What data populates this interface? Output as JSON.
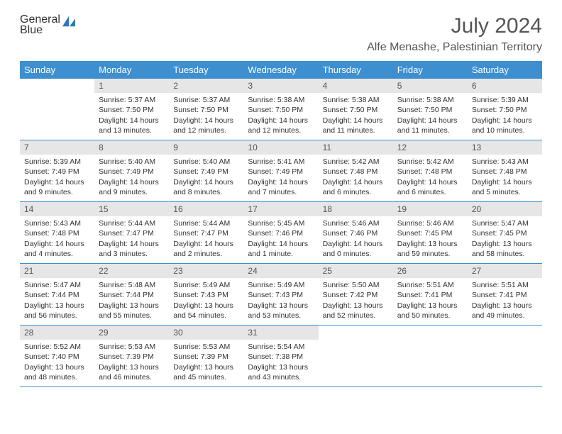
{
  "logo": {
    "line1": "General",
    "line2": "Blue"
  },
  "header": {
    "monthTitle": "July 2024",
    "location": "Alfe Menashe, Palestinian Territory"
  },
  "colors": {
    "headerBar": "#3d8fcf",
    "dayNumBg": "#e6e6e6",
    "weekBorder": "#3d8fcf",
    "logoGray": "#6a6a6a",
    "logoBlue": "#2f78b7",
    "textDark": "#333333",
    "background": "#ffffff"
  },
  "dayNames": [
    "Sunday",
    "Monday",
    "Tuesday",
    "Wednesday",
    "Thursday",
    "Friday",
    "Saturday"
  ],
  "weeks": [
    [
      {
        "day": "",
        "sunrise": "",
        "sunset": "",
        "daylight": ""
      },
      {
        "day": "1",
        "sunrise": "Sunrise: 5:37 AM",
        "sunset": "Sunset: 7:50 PM",
        "daylight": "Daylight: 14 hours and 13 minutes."
      },
      {
        "day": "2",
        "sunrise": "Sunrise: 5:37 AM",
        "sunset": "Sunset: 7:50 PM",
        "daylight": "Daylight: 14 hours and 12 minutes."
      },
      {
        "day": "3",
        "sunrise": "Sunrise: 5:38 AM",
        "sunset": "Sunset: 7:50 PM",
        "daylight": "Daylight: 14 hours and 12 minutes."
      },
      {
        "day": "4",
        "sunrise": "Sunrise: 5:38 AM",
        "sunset": "Sunset: 7:50 PM",
        "daylight": "Daylight: 14 hours and 11 minutes."
      },
      {
        "day": "5",
        "sunrise": "Sunrise: 5:38 AM",
        "sunset": "Sunset: 7:50 PM",
        "daylight": "Daylight: 14 hours and 11 minutes."
      },
      {
        "day": "6",
        "sunrise": "Sunrise: 5:39 AM",
        "sunset": "Sunset: 7:50 PM",
        "daylight": "Daylight: 14 hours and 10 minutes."
      }
    ],
    [
      {
        "day": "7",
        "sunrise": "Sunrise: 5:39 AM",
        "sunset": "Sunset: 7:49 PM",
        "daylight": "Daylight: 14 hours and 9 minutes."
      },
      {
        "day": "8",
        "sunrise": "Sunrise: 5:40 AM",
        "sunset": "Sunset: 7:49 PM",
        "daylight": "Daylight: 14 hours and 9 minutes."
      },
      {
        "day": "9",
        "sunrise": "Sunrise: 5:40 AM",
        "sunset": "Sunset: 7:49 PM",
        "daylight": "Daylight: 14 hours and 8 minutes."
      },
      {
        "day": "10",
        "sunrise": "Sunrise: 5:41 AM",
        "sunset": "Sunset: 7:49 PM",
        "daylight": "Daylight: 14 hours and 7 minutes."
      },
      {
        "day": "11",
        "sunrise": "Sunrise: 5:42 AM",
        "sunset": "Sunset: 7:48 PM",
        "daylight": "Daylight: 14 hours and 6 minutes."
      },
      {
        "day": "12",
        "sunrise": "Sunrise: 5:42 AM",
        "sunset": "Sunset: 7:48 PM",
        "daylight": "Daylight: 14 hours and 6 minutes."
      },
      {
        "day": "13",
        "sunrise": "Sunrise: 5:43 AM",
        "sunset": "Sunset: 7:48 PM",
        "daylight": "Daylight: 14 hours and 5 minutes."
      }
    ],
    [
      {
        "day": "14",
        "sunrise": "Sunrise: 5:43 AM",
        "sunset": "Sunset: 7:48 PM",
        "daylight": "Daylight: 14 hours and 4 minutes."
      },
      {
        "day": "15",
        "sunrise": "Sunrise: 5:44 AM",
        "sunset": "Sunset: 7:47 PM",
        "daylight": "Daylight: 14 hours and 3 minutes."
      },
      {
        "day": "16",
        "sunrise": "Sunrise: 5:44 AM",
        "sunset": "Sunset: 7:47 PM",
        "daylight": "Daylight: 14 hours and 2 minutes."
      },
      {
        "day": "17",
        "sunrise": "Sunrise: 5:45 AM",
        "sunset": "Sunset: 7:46 PM",
        "daylight": "Daylight: 14 hours and 1 minute."
      },
      {
        "day": "18",
        "sunrise": "Sunrise: 5:46 AM",
        "sunset": "Sunset: 7:46 PM",
        "daylight": "Daylight: 14 hours and 0 minutes."
      },
      {
        "day": "19",
        "sunrise": "Sunrise: 5:46 AM",
        "sunset": "Sunset: 7:45 PM",
        "daylight": "Daylight: 13 hours and 59 minutes."
      },
      {
        "day": "20",
        "sunrise": "Sunrise: 5:47 AM",
        "sunset": "Sunset: 7:45 PM",
        "daylight": "Daylight: 13 hours and 58 minutes."
      }
    ],
    [
      {
        "day": "21",
        "sunrise": "Sunrise: 5:47 AM",
        "sunset": "Sunset: 7:44 PM",
        "daylight": "Daylight: 13 hours and 56 minutes."
      },
      {
        "day": "22",
        "sunrise": "Sunrise: 5:48 AM",
        "sunset": "Sunset: 7:44 PM",
        "daylight": "Daylight: 13 hours and 55 minutes."
      },
      {
        "day": "23",
        "sunrise": "Sunrise: 5:49 AM",
        "sunset": "Sunset: 7:43 PM",
        "daylight": "Daylight: 13 hours and 54 minutes."
      },
      {
        "day": "24",
        "sunrise": "Sunrise: 5:49 AM",
        "sunset": "Sunset: 7:43 PM",
        "daylight": "Daylight: 13 hours and 53 minutes."
      },
      {
        "day": "25",
        "sunrise": "Sunrise: 5:50 AM",
        "sunset": "Sunset: 7:42 PM",
        "daylight": "Daylight: 13 hours and 52 minutes."
      },
      {
        "day": "26",
        "sunrise": "Sunrise: 5:51 AM",
        "sunset": "Sunset: 7:41 PM",
        "daylight": "Daylight: 13 hours and 50 minutes."
      },
      {
        "day": "27",
        "sunrise": "Sunrise: 5:51 AM",
        "sunset": "Sunset: 7:41 PM",
        "daylight": "Daylight: 13 hours and 49 minutes."
      }
    ],
    [
      {
        "day": "28",
        "sunrise": "Sunrise: 5:52 AM",
        "sunset": "Sunset: 7:40 PM",
        "daylight": "Daylight: 13 hours and 48 minutes."
      },
      {
        "day": "29",
        "sunrise": "Sunrise: 5:53 AM",
        "sunset": "Sunset: 7:39 PM",
        "daylight": "Daylight: 13 hours and 46 minutes."
      },
      {
        "day": "30",
        "sunrise": "Sunrise: 5:53 AM",
        "sunset": "Sunset: 7:39 PM",
        "daylight": "Daylight: 13 hours and 45 minutes."
      },
      {
        "day": "31",
        "sunrise": "Sunrise: 5:54 AM",
        "sunset": "Sunset: 7:38 PM",
        "daylight": "Daylight: 13 hours and 43 minutes."
      },
      {
        "day": "",
        "sunrise": "",
        "sunset": "",
        "daylight": ""
      },
      {
        "day": "",
        "sunrise": "",
        "sunset": "",
        "daylight": ""
      },
      {
        "day": "",
        "sunrise": "",
        "sunset": "",
        "daylight": ""
      }
    ]
  ]
}
